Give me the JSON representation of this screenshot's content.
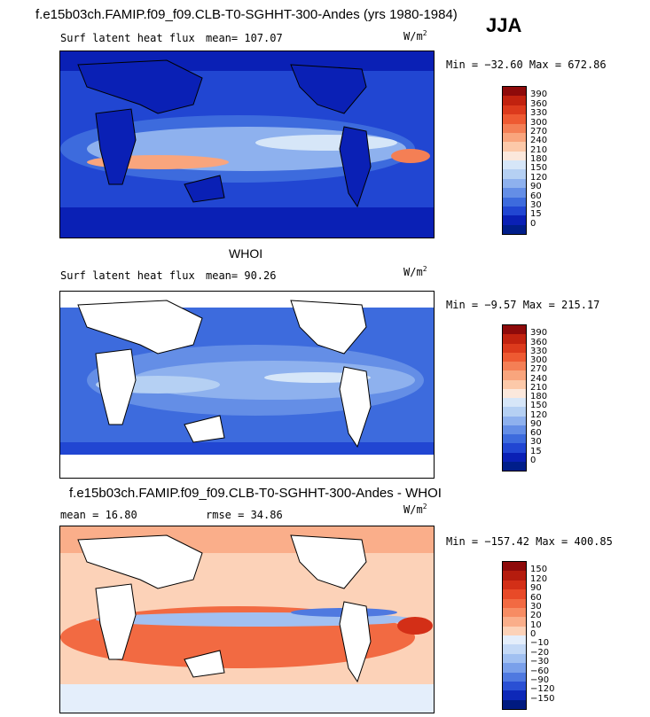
{
  "season": "JJA",
  "panels": [
    {
      "title": "f.e15b03ch.FAMIP.f09_f09.CLB-T0-SGHHT-300-Andes (yrs 1980-1984)",
      "left_text": "Surf latent heat flux",
      "mid_text": "mean=  107.07",
      "units": "W/m",
      "units_sup": "2",
      "minmax": "Min = −32.60 Max = 672.86",
      "colorbar_labels": [
        "390",
        "360",
        "330",
        "300",
        "270",
        "240",
        "210",
        "180",
        "150",
        "120",
        "90",
        "60",
        "30",
        "15",
        "0"
      ],
      "colors": [
        "#8e0a0a",
        "#c1220f",
        "#dc3a1c",
        "#ee5a32",
        "#f47f55",
        "#f9a57d",
        "#fcc9a9",
        "#fbe8dc",
        "#d6e6f8",
        "#b5d0f3",
        "#8eb1ee",
        "#648ee6",
        "#3d6bdd",
        "#2146d2",
        "#0a20b5",
        "#001e8a"
      ]
    },
    {
      "title": "WHOI",
      "left_text": "Surf latent heat flux",
      "mid_text": "mean=   90.26",
      "units": "W/m",
      "units_sup": "2",
      "minmax": "Min =  −9.57 Max = 215.17",
      "colorbar_labels": [
        "390",
        "360",
        "330",
        "300",
        "270",
        "240",
        "210",
        "180",
        "150",
        "120",
        "90",
        "60",
        "30",
        "15",
        "0"
      ],
      "colors": [
        "#8e0a0a",
        "#c1220f",
        "#dc3a1c",
        "#ee5a32",
        "#f47f55",
        "#f9a57d",
        "#fcc9a9",
        "#fbe8dc",
        "#d6e6f8",
        "#b5d0f3",
        "#8eb1ee",
        "#648ee6",
        "#3d6bdd",
        "#2146d2",
        "#0a20b5",
        "#001e8a"
      ]
    },
    {
      "title": "f.e15b03ch.FAMIP.f09_f09.CLB-T0-SGHHT-300-Andes - WHOI",
      "left_text": "mean =  16.80",
      "mid_text": "rmse =  34.86",
      "units": "W/m",
      "units_sup": "2",
      "minmax": "Min = −157.42 Max = 400.85",
      "colorbar_labels": [
        "150",
        "120",
        "90",
        "60",
        "30",
        "20",
        "10",
        "0",
        "−10",
        "−20",
        "−30",
        "−60",
        "−90",
        "−120",
        "−150"
      ],
      "colors": [
        "#8e0a0a",
        "#b51c0e",
        "#d32f17",
        "#e84a28",
        "#f26a42",
        "#f78c63",
        "#faae8a",
        "#fcd2b8",
        "#e4eefb",
        "#c4d9f6",
        "#a1c0f1",
        "#7aa0ea",
        "#4f79e0",
        "#2a50d4",
        "#0d28b8",
        "#001a80"
      ]
    }
  ]
}
